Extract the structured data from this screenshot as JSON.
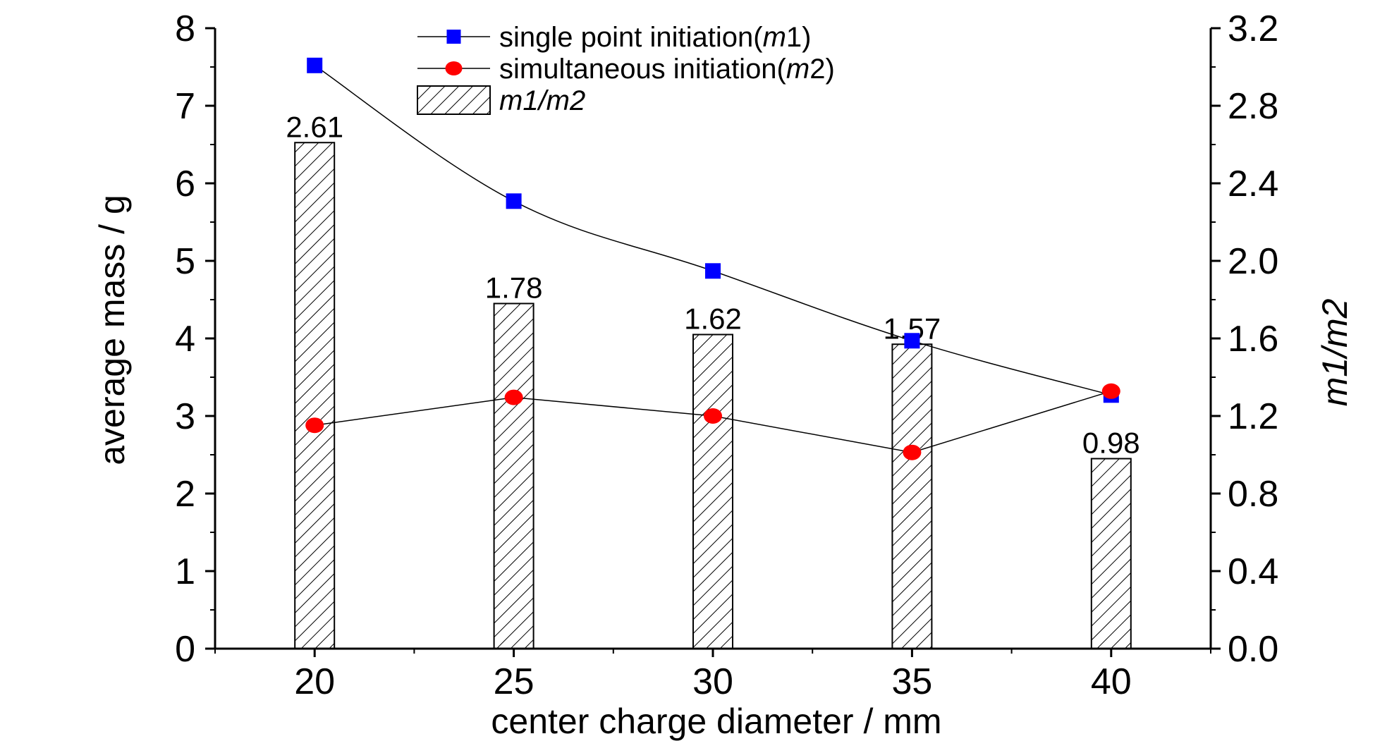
{
  "chart_data": {
    "type": "bar",
    "categories": [
      20,
      25,
      30,
      35,
      40
    ],
    "xlabel": "center charge diameter / mm",
    "ylabel": "average mass / g",
    "y2label": "m1/m2",
    "xlim": [
      17.5,
      42.5
    ],
    "ylim": [
      0,
      8
    ],
    "y2lim": [
      0,
      3.2
    ],
    "x_ticks": [
      "20",
      "25",
      "30",
      "35",
      "40"
    ],
    "y_ticks": [
      "0",
      "1",
      "2",
      "3",
      "4",
      "5",
      "6",
      "7",
      "8"
    ],
    "y2_ticks": [
      "0.0",
      "0.4",
      "0.8",
      "1.2",
      "1.6",
      "2.0",
      "2.4",
      "2.8",
      "3.2"
    ],
    "grid": false,
    "legend_position": "top-center",
    "series": [
      {
        "name": "single point initiation(m1)",
        "legend_prefix": "single point initiation(",
        "legend_var": "m",
        "legend_suffix": "1)",
        "type": "line",
        "axis": "left",
        "marker": "square",
        "color": "#0000ff",
        "x": [
          20,
          25,
          30,
          35,
          40
        ],
        "values": [
          7.52,
          5.77,
          4.87,
          3.97,
          3.27
        ]
      },
      {
        "name": "simultaneous initiation(m2)",
        "legend_prefix": "simultaneous initiation(",
        "legend_var": "m",
        "legend_suffix": "2)",
        "type": "line",
        "axis": "left",
        "marker": "circle",
        "color": "#ff0000",
        "x": [
          20,
          25,
          30,
          35,
          40
        ],
        "values": [
          2.88,
          3.24,
          3.0,
          2.53,
          3.32
        ]
      },
      {
        "name": "m1/m2",
        "type": "bar",
        "axis": "right",
        "pattern": "diagonal-hatch",
        "x": [
          20,
          25,
          30,
          35,
          40
        ],
        "values": [
          2.61,
          1.78,
          1.62,
          1.57,
          0.98
        ],
        "data_labels": [
          "2.61",
          "1.78",
          "1.62",
          "1.57",
          "0.98"
        ]
      }
    ]
  }
}
